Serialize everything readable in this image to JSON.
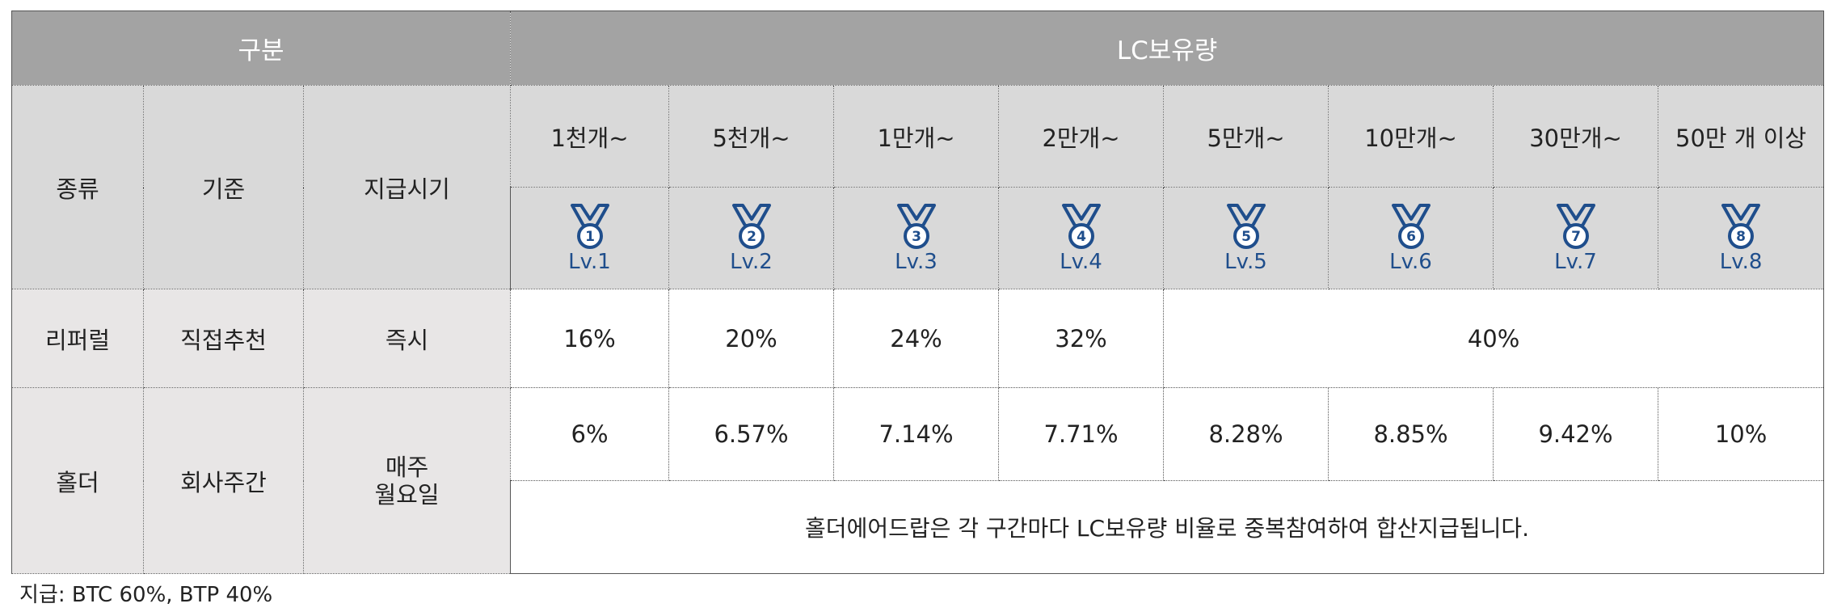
{
  "header": {
    "category": "구분",
    "lc_holdings": "LC보유량"
  },
  "columns": {
    "type": "종류",
    "basis": "기준",
    "payment_time": "지급시기"
  },
  "tiers": [
    {
      "range": "1천개~",
      "level": "Lv.1",
      "medal_number": "1"
    },
    {
      "range": "5천개~",
      "level": "Lv.2",
      "medal_number": "2"
    },
    {
      "range": "1만개~",
      "level": "Lv.3",
      "medal_number": "3"
    },
    {
      "range": "2만개~",
      "level": "Lv.4",
      "medal_number": "4"
    },
    {
      "range": "5만개~",
      "level": "Lv.5",
      "medal_number": "5"
    },
    {
      "range": "10만개~",
      "level": "Lv.6",
      "medal_number": "6"
    },
    {
      "range": "30만개~",
      "level": "Lv.7",
      "medal_number": "7"
    },
    {
      "range": "50만 개 이상",
      "level": "Lv.8",
      "medal_number": "8"
    }
  ],
  "referral": {
    "type": "리퍼럴",
    "basis": "직접추천",
    "time": "즉시",
    "rates": [
      "16%",
      "20%",
      "24%",
      "32%"
    ],
    "rate_merged": "40%"
  },
  "holder": {
    "type": "홀더",
    "basis": "회사주간",
    "time_line1": "매주",
    "time_line2": "월요일",
    "rates": [
      "6%",
      "6.57%",
      "7.14%",
      "7.71%",
      "8.28%",
      "8.85%",
      "9.42%",
      "10%"
    ],
    "note": "홀더에어드랍은 각 구간마다 LC보유량 비율로 중복참여하여 합산지급됩니다."
  },
  "footnote": "지급: BTC 60%, BTP 40%",
  "colors": {
    "top_header_bg": "#a3a3a3",
    "header_bg": "#d9d9d9",
    "side_bg": "#e8e6e6",
    "level_text": "#1f4e8c"
  },
  "icons": {
    "medal": "medal-icon"
  }
}
